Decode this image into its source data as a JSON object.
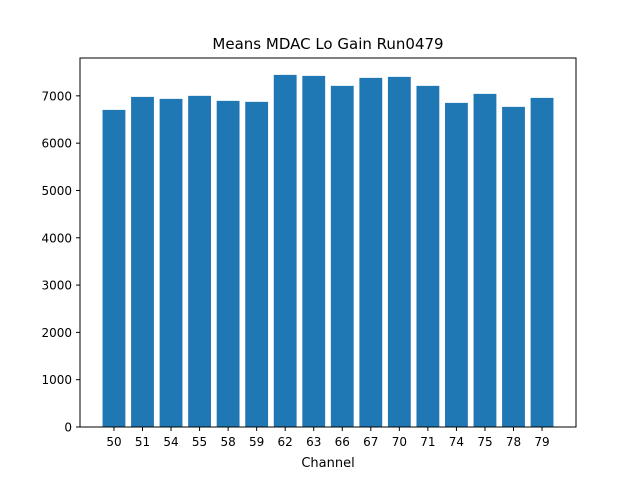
{
  "chart_data": {
    "type": "bar",
    "title": "Means MDAC Lo Gain Run0479",
    "xlabel": "Channel",
    "ylabel": "",
    "categories": [
      "50",
      "51",
      "54",
      "55",
      "58",
      "59",
      "62",
      "63",
      "66",
      "67",
      "70",
      "71",
      "74",
      "75",
      "78",
      "79"
    ],
    "values": [
      6703,
      6978,
      6936,
      7000,
      6894,
      6873,
      7443,
      7422,
      7211,
      7380,
      7401,
      7211,
      6851,
      7042,
      6767,
      6957
    ],
    "ylim": [
      0,
      7800
    ],
    "yticks": [
      0,
      1000,
      2000,
      3000,
      4000,
      5000,
      6000,
      7000
    ],
    "grid": false,
    "bar_color": "#1f77b4"
  }
}
